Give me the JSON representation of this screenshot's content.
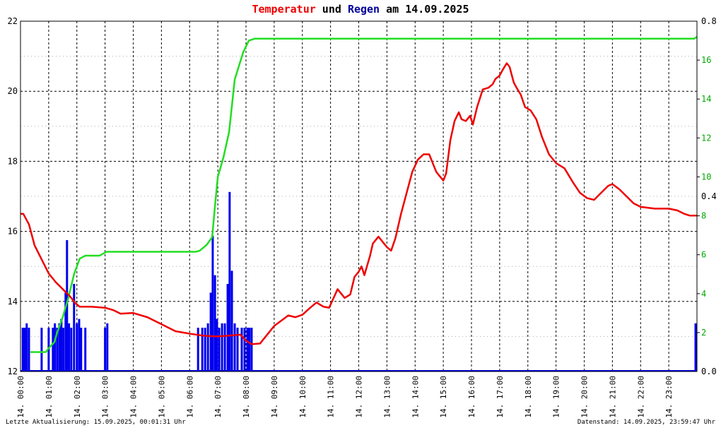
{
  "title": {
    "part1": "Temperatur",
    "part2": " und ",
    "part3": "Regen",
    "part4": " am 14.09.2025",
    "color_temp": "#ee0000",
    "color_rain": "#000099"
  },
  "footer": {
    "left": "Letzte Aktualisierung: 15.09.2025, 00:01:31 Uhr",
    "right": "Datenstand: 14.09.2025, 23:59:47 Uhr"
  },
  "colors": {
    "temperature": "#ee0000",
    "rain_total": "#22dd22",
    "rain_rate": "#0000ee",
    "grid": "#000000"
  },
  "chart_data": {
    "type": "line",
    "x_unit": "hour_of_day",
    "xlim": [
      0,
      24
    ],
    "x_ticks": [
      {
        "x": 0,
        "label": "14. 00:00"
      },
      {
        "x": 1,
        "label": "14. 01:00"
      },
      {
        "x": 2,
        "label": "14. 02:00"
      },
      {
        "x": 3,
        "label": "14. 03:00"
      },
      {
        "x": 4,
        "label": "14. 04:00"
      },
      {
        "x": 5,
        "label": "14. 05:00"
      },
      {
        "x": 6,
        "label": "14. 06:00"
      },
      {
        "x": 7,
        "label": "14. 07:00"
      },
      {
        "x": 8,
        "label": "14. 08:00"
      },
      {
        "x": 9,
        "label": "14. 09:00"
      },
      {
        "x": 10,
        "label": "14. 10:00"
      },
      {
        "x": 11,
        "label": "14. 11:00"
      },
      {
        "x": 12,
        "label": "14. 12:00"
      },
      {
        "x": 13,
        "label": "14. 13:00"
      },
      {
        "x": 14,
        "label": "14. 14:00"
      },
      {
        "x": 15,
        "label": "14. 15:00"
      },
      {
        "x": 16,
        "label": "14. 16:00"
      },
      {
        "x": 17,
        "label": "14. 17:00"
      },
      {
        "x": 18,
        "label": "14. 18:00"
      },
      {
        "x": 19,
        "label": "14. 19:00"
      },
      {
        "x": 20,
        "label": "14. 20:00"
      },
      {
        "x": 21,
        "label": "14. 21:00"
      },
      {
        "x": 22,
        "label": "14. 22:00"
      },
      {
        "x": 23,
        "label": "14. 23:00"
      }
    ],
    "y_left": {
      "lim": [
        12,
        22
      ],
      "ticks": [
        "12",
        "14",
        "16",
        "18",
        "20",
        "22"
      ]
    },
    "y_right_total": {
      "lim": [
        0,
        18
      ],
      "ticks": [
        "2",
        "4",
        "6",
        "8",
        "10",
        "12",
        "14",
        "16"
      ]
    },
    "y_right_rate": {
      "lim": [
        0,
        0.8
      ],
      "ticks": [
        "0.0",
        "0.4",
        "0.8"
      ]
    },
    "grid": true,
    "series": [
      {
        "key": "temperature",
        "axis": "left",
        "values": [
          [
            0.0,
            16.5
          ],
          [
            0.1,
            16.5
          ],
          [
            0.3,
            16.2
          ],
          [
            0.5,
            15.6
          ],
          [
            0.75,
            15.2
          ],
          [
            1.0,
            14.8
          ],
          [
            1.25,
            14.55
          ],
          [
            1.5,
            14.35
          ],
          [
            1.75,
            14.15
          ],
          [
            1.95,
            13.95
          ],
          [
            2.1,
            13.85
          ],
          [
            2.5,
            13.85
          ],
          [
            3.0,
            13.82
          ],
          [
            3.3,
            13.75
          ],
          [
            3.55,
            13.65
          ],
          [
            4.0,
            13.67
          ],
          [
            4.5,
            13.55
          ],
          [
            5.0,
            13.35
          ],
          [
            5.5,
            13.15
          ],
          [
            6.0,
            13.08
          ],
          [
            6.5,
            13.02
          ],
          [
            7.0,
            13.0
          ],
          [
            7.5,
            13.03
          ],
          [
            7.8,
            13.05
          ],
          [
            8.0,
            12.88
          ],
          [
            8.2,
            12.78
          ],
          [
            8.5,
            12.8
          ],
          [
            8.75,
            13.05
          ],
          [
            9.0,
            13.3
          ],
          [
            9.25,
            13.45
          ],
          [
            9.5,
            13.6
          ],
          [
            9.75,
            13.55
          ],
          [
            10.0,
            13.62
          ],
          [
            10.25,
            13.8
          ],
          [
            10.5,
            13.97
          ],
          [
            10.75,
            13.85
          ],
          [
            10.95,
            13.82
          ],
          [
            11.25,
            14.35
          ],
          [
            11.5,
            14.1
          ],
          [
            11.7,
            14.2
          ],
          [
            11.85,
            14.7
          ],
          [
            12.0,
            14.85
          ],
          [
            12.1,
            15.0
          ],
          [
            12.2,
            14.75
          ],
          [
            12.4,
            15.3
          ],
          [
            12.5,
            15.65
          ],
          [
            12.7,
            15.85
          ],
          [
            13.0,
            15.55
          ],
          [
            13.15,
            15.45
          ],
          [
            13.3,
            15.8
          ],
          [
            13.5,
            16.5
          ],
          [
            13.7,
            17.1
          ],
          [
            13.9,
            17.7
          ],
          [
            14.1,
            18.05
          ],
          [
            14.3,
            18.2
          ],
          [
            14.5,
            18.2
          ],
          [
            14.75,
            17.7
          ],
          [
            15.0,
            17.45
          ],
          [
            15.1,
            17.65
          ],
          [
            15.25,
            18.6
          ],
          [
            15.4,
            19.15
          ],
          [
            15.55,
            19.4
          ],
          [
            15.65,
            19.2
          ],
          [
            15.8,
            19.15
          ],
          [
            15.95,
            19.3
          ],
          [
            16.05,
            19.05
          ],
          [
            16.2,
            19.55
          ],
          [
            16.4,
            20.05
          ],
          [
            16.6,
            20.1
          ],
          [
            16.75,
            20.2
          ],
          [
            16.85,
            20.35
          ],
          [
            17.0,
            20.45
          ],
          [
            17.1,
            20.6
          ],
          [
            17.25,
            20.8
          ],
          [
            17.35,
            20.7
          ],
          [
            17.5,
            20.25
          ],
          [
            17.6,
            20.1
          ],
          [
            17.75,
            19.9
          ],
          [
            17.9,
            19.55
          ],
          [
            18.1,
            19.45
          ],
          [
            18.3,
            19.2
          ],
          [
            18.5,
            18.7
          ],
          [
            18.75,
            18.2
          ],
          [
            19.0,
            17.95
          ],
          [
            19.3,
            17.8
          ],
          [
            19.6,
            17.4
          ],
          [
            19.85,
            17.1
          ],
          [
            20.1,
            16.95
          ],
          [
            20.35,
            16.9
          ],
          [
            20.6,
            17.1
          ],
          [
            20.85,
            17.3
          ],
          [
            21.0,
            17.35
          ],
          [
            21.25,
            17.2
          ],
          [
            21.5,
            17.0
          ],
          [
            21.75,
            16.8
          ],
          [
            22.0,
            16.7
          ],
          [
            22.5,
            16.65
          ],
          [
            23.0,
            16.65
          ],
          [
            23.3,
            16.6
          ],
          [
            23.55,
            16.5
          ],
          [
            23.75,
            16.45
          ],
          [
            24.0,
            16.45
          ]
        ]
      },
      {
        "key": "rain_total",
        "axis": "right_total",
        "values": [
          [
            0.35,
            1.0
          ],
          [
            0.9,
            1.0
          ],
          [
            1.0,
            1.2
          ],
          [
            1.2,
            1.5
          ],
          [
            1.3,
            2.0
          ],
          [
            1.5,
            2.8
          ],
          [
            1.7,
            3.8
          ],
          [
            1.9,
            5.0
          ],
          [
            2.1,
            5.8
          ],
          [
            2.3,
            5.95
          ],
          [
            2.8,
            5.95
          ],
          [
            3.05,
            6.15
          ],
          [
            3.5,
            6.15
          ],
          [
            5.0,
            6.15
          ],
          [
            6.2,
            6.15
          ],
          [
            6.35,
            6.2
          ],
          [
            6.6,
            6.5
          ],
          [
            6.8,
            6.9
          ],
          [
            6.9,
            8.5
          ],
          [
            7.0,
            10.0
          ],
          [
            7.2,
            11.0
          ],
          [
            7.4,
            12.3
          ],
          [
            7.6,
            15.0
          ],
          [
            7.9,
            16.4
          ],
          [
            8.1,
            17.0
          ],
          [
            8.3,
            17.1
          ],
          [
            9.0,
            17.1
          ],
          [
            12.0,
            17.1
          ],
          [
            16.0,
            17.1
          ],
          [
            20.0,
            17.1
          ],
          [
            23.9,
            17.1
          ],
          [
            24.0,
            17.2
          ]
        ]
      },
      {
        "key": "rain_rate",
        "axis": "right_rate",
        "type": "bar",
        "values": [
          [
            0.08,
            0.1
          ],
          [
            0.15,
            0.1
          ],
          [
            0.22,
            0.11
          ],
          [
            0.3,
            0.1
          ],
          [
            0.75,
            0.1
          ],
          [
            1.0,
            0.1
          ],
          [
            1.15,
            0.1
          ],
          [
            1.22,
            0.11
          ],
          [
            1.3,
            0.1
          ],
          [
            1.38,
            0.11
          ],
          [
            1.45,
            0.12
          ],
          [
            1.52,
            0.1
          ],
          [
            1.6,
            0.18
          ],
          [
            1.65,
            0.3
          ],
          [
            1.72,
            0.11
          ],
          [
            1.8,
            0.1
          ],
          [
            1.9,
            0.2
          ],
          [
            2.0,
            0.11
          ],
          [
            2.08,
            0.12
          ],
          [
            2.15,
            0.1
          ],
          [
            2.3,
            0.1
          ],
          [
            3.0,
            0.1
          ],
          [
            3.08,
            0.11
          ],
          [
            6.3,
            0.1
          ],
          [
            6.45,
            0.1
          ],
          [
            6.55,
            0.1
          ],
          [
            6.65,
            0.11
          ],
          [
            6.75,
            0.18
          ],
          [
            6.82,
            0.31
          ],
          [
            6.9,
            0.22
          ],
          [
            6.97,
            0.12
          ],
          [
            7.05,
            0.1
          ],
          [
            7.15,
            0.11
          ],
          [
            7.25,
            0.11
          ],
          [
            7.35,
            0.2
          ],
          [
            7.42,
            0.41
          ],
          [
            7.5,
            0.23
          ],
          [
            7.6,
            0.11
          ],
          [
            7.7,
            0.1
          ],
          [
            7.85,
            0.1
          ],
          [
            7.95,
            0.1
          ],
          [
            8.05,
            0.1
          ],
          [
            8.12,
            0.1
          ],
          [
            8.2,
            0.1
          ],
          [
            23.95,
            0.11
          ]
        ]
      }
    ]
  }
}
